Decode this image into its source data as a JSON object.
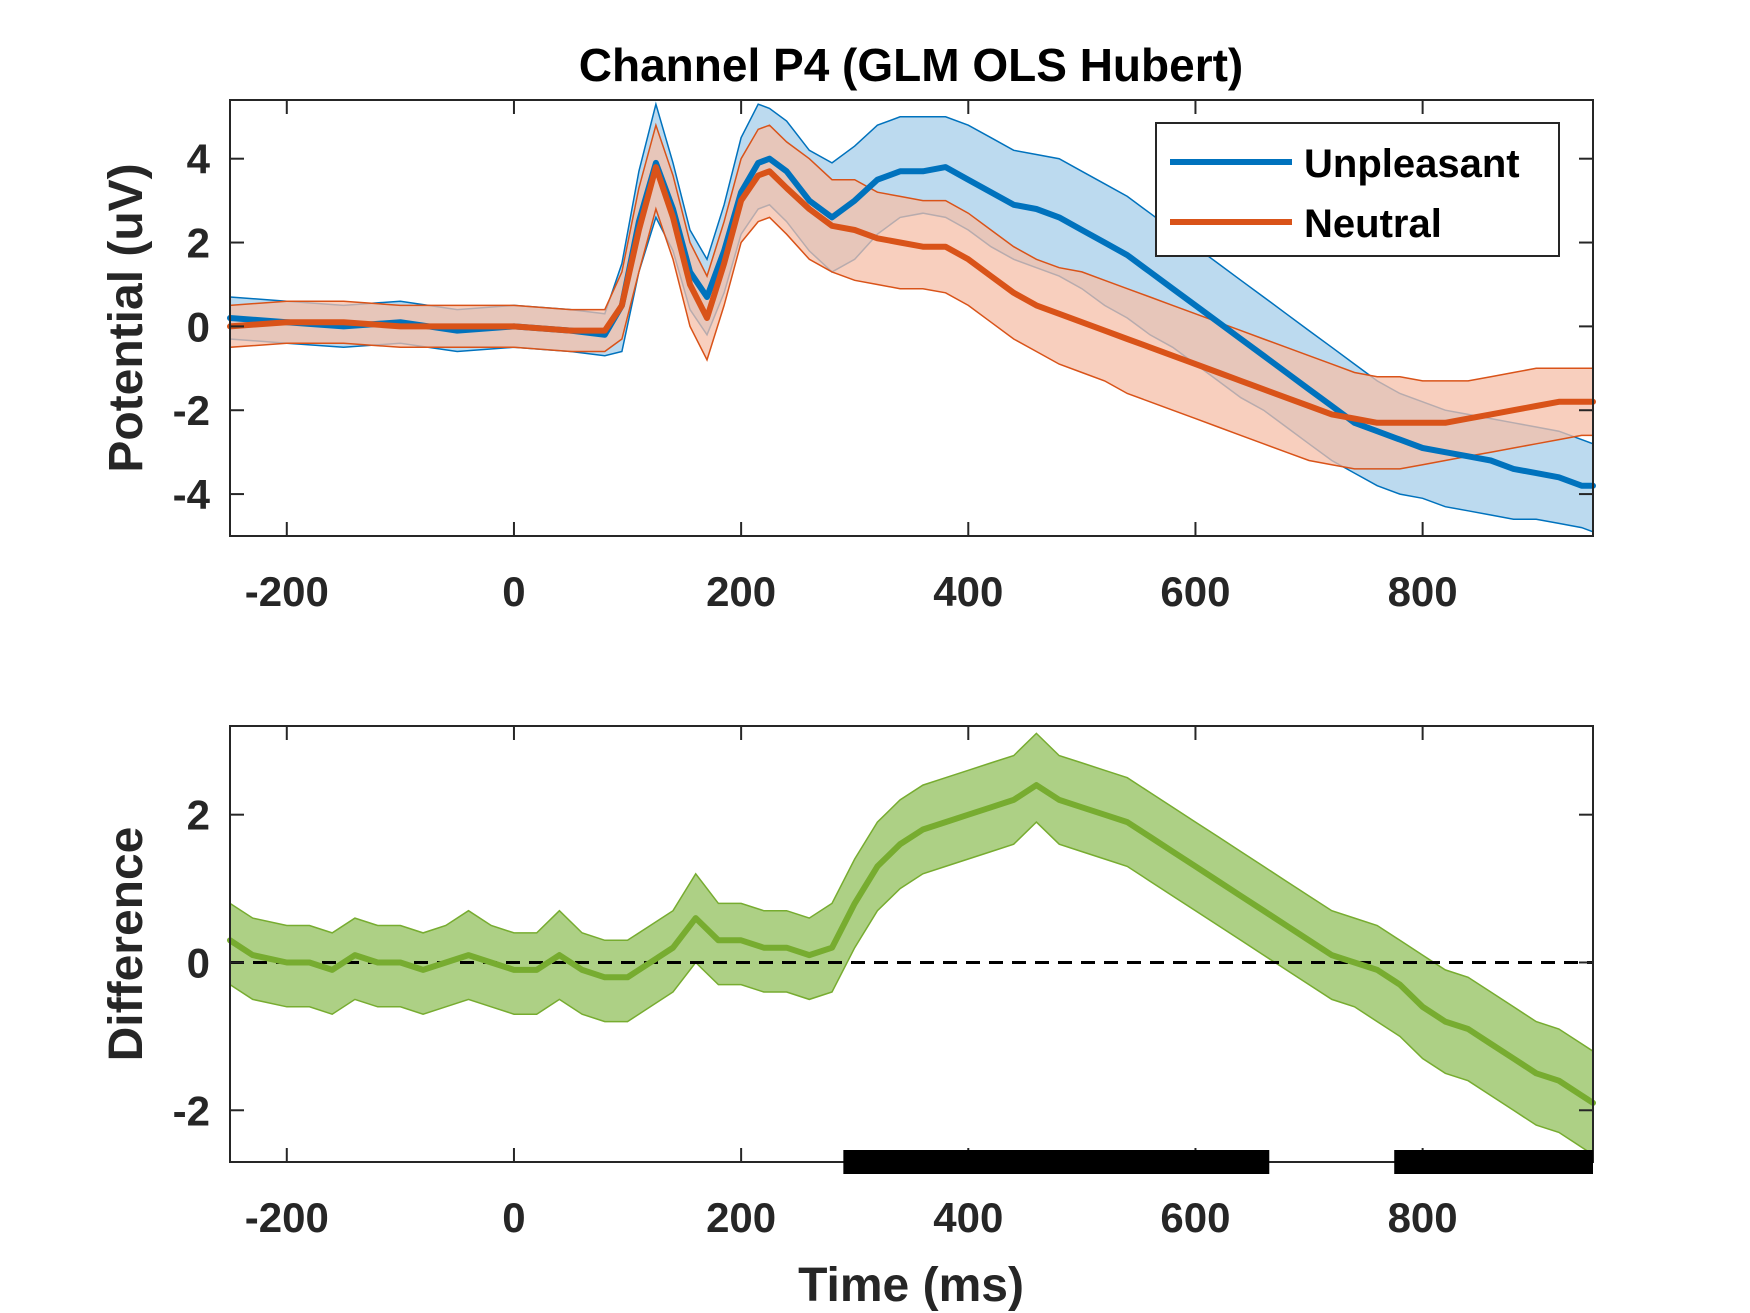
{
  "chart_data": [
    {
      "type": "line",
      "title": "Channel P4 (GLM OLS Hubert)",
      "xlabel": "",
      "ylabel": "Potential (uV)",
      "xlim": [
        -250,
        950
      ],
      "ylim": [
        -5,
        5.4
      ],
      "xticks": [
        -200,
        0,
        200,
        400,
        600,
        800
      ],
      "xtick_labels": [
        "-200",
        "0",
        "200",
        "400",
        "600",
        "800"
      ],
      "yticks": [
        -4,
        -2,
        0,
        2,
        4
      ],
      "ytick_labels": [
        "-4",
        "-2",
        "0",
        "2",
        "4"
      ],
      "grid": false,
      "legend": "top-right",
      "x": [
        -250,
        -200,
        -150,
        -100,
        -50,
        0,
        50,
        80,
        95,
        110,
        125,
        140,
        155,
        170,
        185,
        200,
        215,
        225,
        240,
        260,
        280,
        300,
        320,
        340,
        360,
        380,
        400,
        420,
        440,
        460,
        480,
        500,
        520,
        540,
        560,
        580,
        600,
        620,
        640,
        660,
        680,
        700,
        720,
        740,
        760,
        780,
        800,
        820,
        840,
        860,
        880,
        900,
        920,
        940,
        950
      ],
      "series": [
        {
          "name": "Unpleasant",
          "color": "#0072BD",
          "fill": "#A6CEE9",
          "values": [
            0.2,
            0.1,
            0.0,
            0.1,
            -0.1,
            0.0,
            -0.1,
            -0.2,
            0.5,
            2.5,
            3.9,
            2.8,
            1.3,
            0.7,
            1.8,
            3.2,
            3.9,
            4.0,
            3.7,
            3.0,
            2.6,
            3.0,
            3.5,
            3.7,
            3.7,
            3.8,
            3.5,
            3.2,
            2.9,
            2.8,
            2.6,
            2.3,
            2.0,
            1.7,
            1.3,
            0.9,
            0.5,
            0.1,
            -0.3,
            -0.7,
            -1.1,
            -1.5,
            -1.9,
            -2.3,
            -2.5,
            -2.7,
            -2.9,
            -3.0,
            -3.1,
            -3.2,
            -3.4,
            -3.5,
            -3.6,
            -3.8,
            -3.8
          ],
          "lower": [
            -0.3,
            -0.4,
            -0.5,
            -0.4,
            -0.6,
            -0.5,
            -0.6,
            -0.7,
            -0.6,
            1.3,
            2.6,
            1.8,
            0.4,
            -0.2,
            0.8,
            2.2,
            2.8,
            2.9,
            2.5,
            1.8,
            1.3,
            1.6,
            2.2,
            2.6,
            2.7,
            2.6,
            2.3,
            1.9,
            1.6,
            1.4,
            1.2,
            0.9,
            0.5,
            0.2,
            -0.2,
            -0.5,
            -0.9,
            -1.3,
            -1.7,
            -2.0,
            -2.4,
            -2.8,
            -3.2,
            -3.5,
            -3.8,
            -4.0,
            -4.1,
            -4.3,
            -4.4,
            -4.5,
            -4.6,
            -4.6,
            -4.7,
            -4.8,
            -4.9
          ],
          "upper": [
            0.7,
            0.6,
            0.5,
            0.6,
            0.4,
            0.5,
            0.4,
            0.3,
            1.5,
            3.7,
            5.3,
            3.9,
            2.3,
            1.6,
            2.9,
            4.5,
            5.3,
            5.2,
            4.9,
            4.2,
            3.9,
            4.3,
            4.8,
            5.0,
            5.0,
            5.0,
            4.8,
            4.5,
            4.2,
            4.1,
            4.0,
            3.7,
            3.4,
            3.1,
            2.7,
            2.3,
            1.9,
            1.5,
            1.1,
            0.7,
            0.3,
            -0.1,
            -0.5,
            -0.9,
            -1.3,
            -1.6,
            -1.8,
            -2.0,
            -2.1,
            -2.2,
            -2.3,
            -2.4,
            -2.5,
            -2.7,
            -2.8
          ]
        },
        {
          "name": "Neutral",
          "color": "#D95319",
          "fill": "#F5BFA8",
          "values": [
            0.0,
            0.1,
            0.1,
            0.0,
            0.0,
            0.0,
            -0.1,
            -0.1,
            0.5,
            2.3,
            3.8,
            2.6,
            1.0,
            0.2,
            1.5,
            3.0,
            3.6,
            3.7,
            3.3,
            2.8,
            2.4,
            2.3,
            2.1,
            2.0,
            1.9,
            1.9,
            1.6,
            1.2,
            0.8,
            0.5,
            0.3,
            0.1,
            -0.1,
            -0.3,
            -0.5,
            -0.7,
            -0.9,
            -1.1,
            -1.3,
            -1.5,
            -1.7,
            -1.9,
            -2.1,
            -2.2,
            -2.3,
            -2.3,
            -2.3,
            -2.3,
            -2.2,
            -2.1,
            -2.0,
            -1.9,
            -1.8,
            -1.8,
            -1.8
          ],
          "lower": [
            -0.5,
            -0.4,
            -0.4,
            -0.5,
            -0.5,
            -0.5,
            -0.6,
            -0.6,
            -0.3,
            1.3,
            2.8,
            1.6,
            0.0,
            -0.8,
            0.5,
            2.0,
            2.5,
            2.6,
            2.2,
            1.6,
            1.3,
            1.1,
            1.0,
            0.9,
            0.9,
            0.8,
            0.5,
            0.1,
            -0.3,
            -0.6,
            -0.9,
            -1.1,
            -1.3,
            -1.6,
            -1.8,
            -2.0,
            -2.2,
            -2.4,
            -2.6,
            -2.8,
            -3.0,
            -3.2,
            -3.3,
            -3.4,
            -3.4,
            -3.4,
            -3.3,
            -3.2,
            -3.1,
            -3.0,
            -2.9,
            -2.8,
            -2.7,
            -2.6,
            -2.6
          ],
          "upper": [
            0.5,
            0.6,
            0.6,
            0.5,
            0.5,
            0.5,
            0.4,
            0.4,
            1.3,
            3.3,
            4.8,
            3.6,
            2.0,
            1.2,
            2.5,
            4.0,
            4.7,
            4.8,
            4.4,
            4.0,
            3.5,
            3.5,
            3.2,
            3.1,
            3.0,
            3.0,
            2.7,
            2.3,
            1.9,
            1.6,
            1.4,
            1.3,
            1.1,
            0.9,
            0.7,
            0.5,
            0.3,
            0.1,
            -0.1,
            -0.3,
            -0.5,
            -0.7,
            -0.9,
            -1.1,
            -1.2,
            -1.2,
            -1.3,
            -1.3,
            -1.3,
            -1.2,
            -1.1,
            -1.0,
            -1.0,
            -1.0,
            -1.0
          ]
        }
      ]
    },
    {
      "type": "line",
      "title": "",
      "xlabel": "Time (ms)",
      "ylabel": "Difference",
      "xlim": [
        -250,
        950
      ],
      "ylim": [
        -2.7,
        3.2
      ],
      "xticks": [
        -200,
        0,
        200,
        400,
        600,
        800
      ],
      "xtick_labels": [
        "-200",
        "0",
        "200",
        "400",
        "600",
        "800"
      ],
      "yticks": [
        -2,
        0,
        2
      ],
      "ytick_labels": [
        "-2",
        "0",
        "2"
      ],
      "grid": false,
      "reference_line": 0,
      "x": [
        -250,
        -230,
        -200,
        -180,
        -160,
        -140,
        -120,
        -100,
        -80,
        -60,
        -40,
        -20,
        0,
        20,
        40,
        60,
        80,
        100,
        120,
        140,
        160,
        180,
        200,
        220,
        240,
        260,
        280,
        300,
        320,
        340,
        360,
        380,
        400,
        420,
        440,
        460,
        480,
        500,
        520,
        540,
        560,
        580,
        600,
        620,
        640,
        660,
        680,
        700,
        720,
        740,
        760,
        780,
        800,
        820,
        840,
        860,
        880,
        900,
        920,
        940,
        950
      ],
      "series": [
        {
          "name": "",
          "color": "#77AC30",
          "fill": "#A9CD7E",
          "values": [
            0.3,
            0.1,
            0.0,
            0.0,
            -0.1,
            0.1,
            0.0,
            0.0,
            -0.1,
            0.0,
            0.1,
            0.0,
            -0.1,
            -0.1,
            0.1,
            -0.1,
            -0.2,
            -0.2,
            0.0,
            0.2,
            0.6,
            0.3,
            0.3,
            0.2,
            0.2,
            0.1,
            0.2,
            0.8,
            1.3,
            1.6,
            1.8,
            1.9,
            2.0,
            2.1,
            2.2,
            2.4,
            2.2,
            2.1,
            2.0,
            1.9,
            1.7,
            1.5,
            1.3,
            1.1,
            0.9,
            0.7,
            0.5,
            0.3,
            0.1,
            0.0,
            -0.1,
            -0.3,
            -0.6,
            -0.8,
            -0.9,
            -1.1,
            -1.3,
            -1.5,
            -1.6,
            -1.8,
            -1.9
          ],
          "lower": [
            -0.3,
            -0.5,
            -0.6,
            -0.6,
            -0.7,
            -0.5,
            -0.6,
            -0.6,
            -0.7,
            -0.6,
            -0.5,
            -0.6,
            -0.7,
            -0.7,
            -0.5,
            -0.7,
            -0.8,
            -0.8,
            -0.6,
            -0.4,
            0.0,
            -0.3,
            -0.3,
            -0.4,
            -0.4,
            -0.5,
            -0.4,
            0.2,
            0.7,
            1.0,
            1.2,
            1.3,
            1.4,
            1.5,
            1.6,
            1.9,
            1.6,
            1.5,
            1.4,
            1.3,
            1.1,
            0.9,
            0.7,
            0.5,
            0.3,
            0.1,
            -0.1,
            -0.3,
            -0.5,
            -0.6,
            -0.8,
            -1.0,
            -1.3,
            -1.5,
            -1.6,
            -1.8,
            -2.0,
            -2.2,
            -2.3,
            -2.5,
            -2.6
          ],
          "upper": [
            0.8,
            0.6,
            0.5,
            0.5,
            0.4,
            0.6,
            0.5,
            0.5,
            0.4,
            0.5,
            0.7,
            0.5,
            0.4,
            0.4,
            0.7,
            0.4,
            0.3,
            0.3,
            0.5,
            0.7,
            1.2,
            0.8,
            0.8,
            0.7,
            0.7,
            0.6,
            0.8,
            1.4,
            1.9,
            2.2,
            2.4,
            2.5,
            2.6,
            2.7,
            2.8,
            3.1,
            2.8,
            2.7,
            2.6,
            2.5,
            2.3,
            2.1,
            1.9,
            1.7,
            1.5,
            1.3,
            1.1,
            0.9,
            0.7,
            0.6,
            0.5,
            0.3,
            0.1,
            -0.1,
            -0.2,
            -0.4,
            -0.6,
            -0.8,
            -0.9,
            -1.1,
            -1.2
          ]
        }
      ],
      "significance_intervals": [
        [
          290,
          665
        ],
        [
          775,
          950
        ]
      ]
    }
  ]
}
